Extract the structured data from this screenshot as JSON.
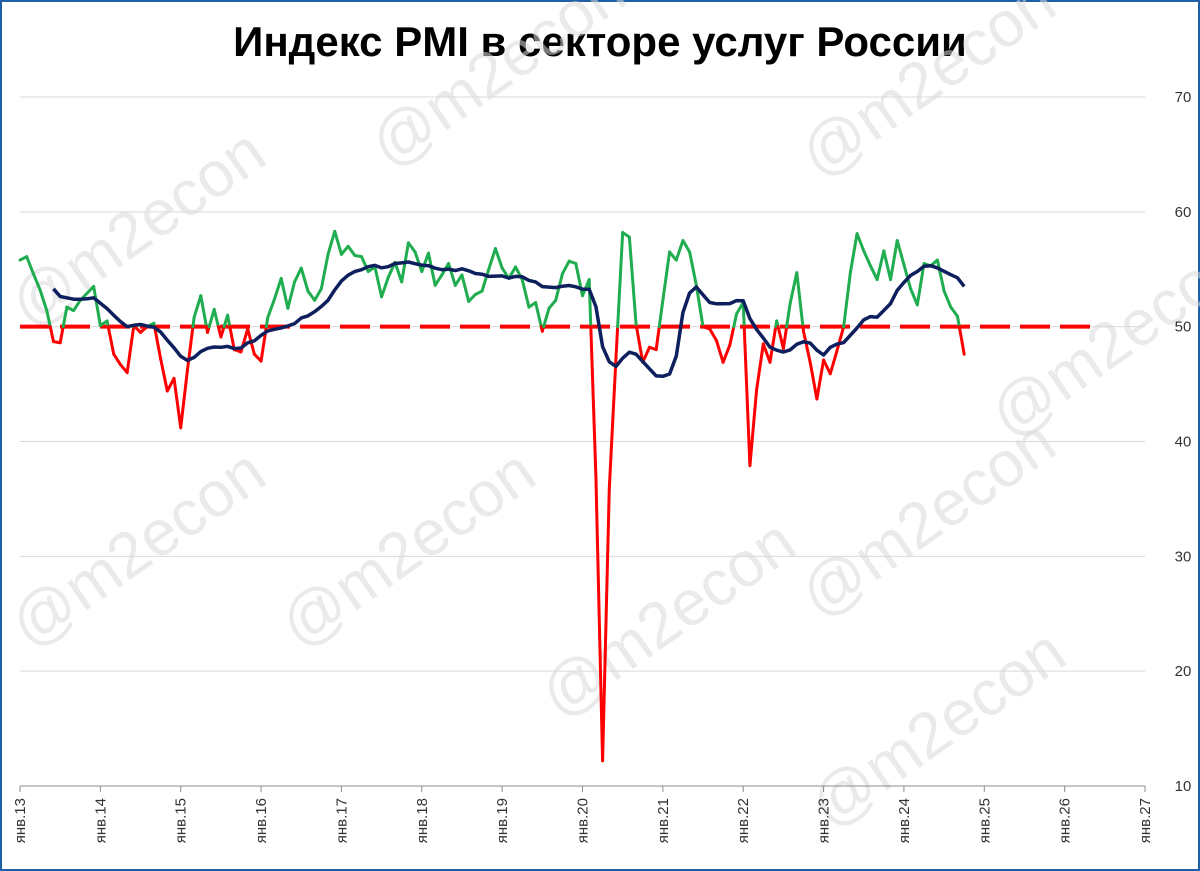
{
  "chart_data": {
    "type": "line",
    "title": "Индекс PMI в секторе услуг России",
    "watermark": "@m2econ",
    "colors": {
      "above_50": "#1fad4f",
      "below_50": "#ff0000",
      "moving_average": "#0d1f5c",
      "threshold": "#ff0000",
      "grid": "#d9d9d9"
    },
    "y_axis": {
      "min": 10,
      "max": 70,
      "ticks": [
        "10",
        "20",
        "30",
        "40",
        "50",
        "60",
        "70"
      ],
      "position": "right"
    },
    "x_axis": {
      "ticks": [
        "янв.13",
        "янв.14",
        "янв.15",
        "янв.16",
        "янв.17",
        "янв.18",
        "янв.19",
        "янв.20",
        "янв.21",
        "янв.22",
        "янв.23",
        "янв.24",
        "янв.25",
        "янв.26",
        "янв.27"
      ],
      "start_label": "янв.13",
      "months_total": 168
    },
    "threshold": 50,
    "pmi": [
      55.8,
      56.1,
      54.6,
      53.2,
      51.4,
      48.7,
      48.6,
      51.7,
      51.4,
      52.3,
      52.9,
      53.5,
      50.1,
      50.5,
      47.6,
      46.7,
      46.0,
      50.1,
      49.5,
      50.0,
      50.3,
      47.2,
      44.4,
      45.5,
      41.2,
      46.2,
      50.8,
      52.7,
      49.5,
      51.5,
      49.1,
      51.0,
      48.0,
      47.8,
      49.8,
      47.6,
      47.0,
      50.8,
      52.4,
      54.2,
      51.6,
      53.9,
      55.1,
      53.1,
      52.3,
      53.3,
      56.3,
      58.3,
      56.3,
      57.0,
      56.2,
      56.1,
      54.8,
      55.2,
      52.6,
      54.3,
      55.6,
      53.9,
      57.3,
      56.5,
      54.8,
      56.4,
      53.6,
      54.5,
      55.5,
      53.6,
      54.5,
      52.2,
      52.8,
      53.1,
      55.0,
      56.8,
      55.1,
      54.2,
      55.2,
      54.1,
      51.7,
      52.1,
      49.6,
      51.6,
      52.3,
      54.6,
      55.7,
      55.5,
      52.7,
      54.1,
      37.0,
      12.2,
      35.9,
      47.3,
      58.2,
      57.8,
      50.2,
      46.9,
      48.2,
      48.0,
      52.3,
      56.5,
      55.8,
      57.5,
      56.5,
      53.6,
      50.0,
      49.8,
      48.8,
      46.9,
      48.4,
      51.1,
      52.1,
      37.9,
      44.5,
      48.5,
      46.9,
      50.5,
      48.1,
      52.0,
      54.7,
      49.6,
      46.9,
      43.7,
      47.1,
      45.9,
      47.9,
      50.0,
      54.7,
      58.1,
      56.6,
      55.3,
      54.1,
      56.6,
      54.1,
      57.5,
      55.4,
      53.3,
      51.9,
      55.5,
      55.3,
      55.8,
      53.1,
      51.7,
      50.9,
      47.6
    ]
  }
}
